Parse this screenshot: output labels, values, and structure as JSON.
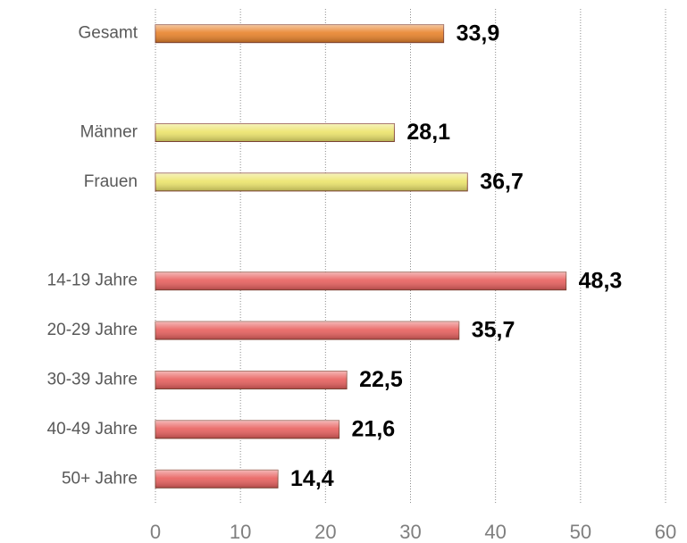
{
  "chart_data": {
    "type": "hbar",
    "categories": [
      "Gesamt",
      null,
      "Männer",
      "Frauen",
      null,
      "14-19 Jahre",
      "20-29 Jahre",
      "30-39 Jahre",
      "40-49 Jahre",
      "50+ Jahre"
    ],
    "values": [
      33.9,
      null,
      28.1,
      36.7,
      null,
      48.3,
      35.7,
      22.5,
      21.6,
      14.4
    ],
    "value_labels": [
      "33,9",
      null,
      "28,1",
      "36,7",
      null,
      "48,3",
      "35,7",
      "22,5",
      "21,6",
      "14,4"
    ],
    "colors": [
      "#e8822a",
      null,
      "#ece46a",
      "#ece46a",
      null,
      "#e8605e",
      "#e8605e",
      "#e8605e",
      "#e8605e",
      "#e8605e"
    ],
    "xlim": [
      0,
      60
    ],
    "xticks": [
      0,
      10,
      20,
      30,
      40,
      50,
      60
    ],
    "grid": true
  }
}
